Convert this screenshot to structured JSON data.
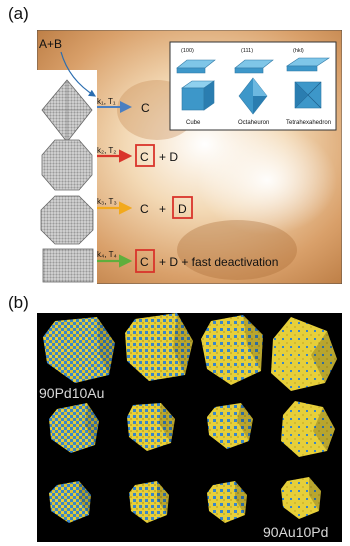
{
  "panel_a": {
    "label": "(a)",
    "reactants": "A+B",
    "rows": [
      {
        "kt": "k₁, T₁",
        "product": "C",
        "extra": ""
      },
      {
        "kt": "k₂, T₂",
        "product": "C",
        "extra": "+ D"
      },
      {
        "kt": "k₃, T₃",
        "product": "C",
        "extra": "+"
      },
      {
        "kt": "k₄, T₄",
        "product": "C",
        "extra": "+ D + fast deactivation"
      }
    ],
    "row3_d": "D",
    "inset": {
      "planes": [
        "(100)",
        "(111)",
        "(hkl)"
      ],
      "shapes": [
        "Cube",
        "Octaheuron",
        "Tetrahexahedron"
      ]
    },
    "colors": {
      "arrow1": "#4a7fc1",
      "arrow2": "#d9342b",
      "arrow3": "#f2a91c",
      "arrow4": "#5fae3c",
      "box": "#d9342b"
    }
  },
  "panel_b": {
    "label": "(b)",
    "top_label": "90Pd10Au",
    "bottom_label": "90Au10Pd",
    "colors": {
      "au": "#e6cf3a",
      "pd": "#3a86c8",
      "bg": "#000000"
    }
  }
}
